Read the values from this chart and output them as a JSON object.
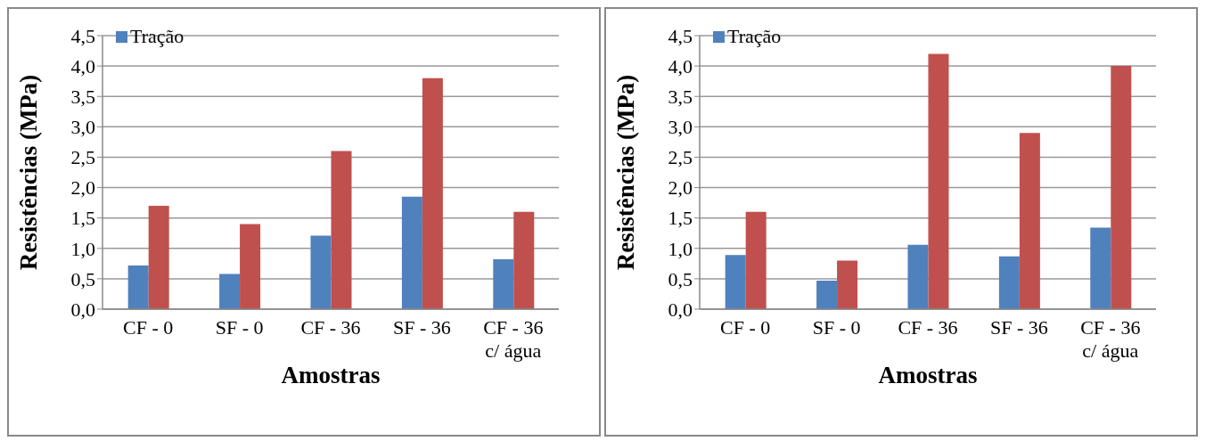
{
  "chart_data": [
    {
      "type": "bar",
      "categories": [
        "CF - 0",
        "SF - 0",
        "CF - 36",
        "SF - 36",
        "CF - 36 c/ água"
      ],
      "xlabel": "Amostras",
      "ylabel": "Resistências (MPa)",
      "series": [
        {
          "name": "Tração",
          "color": "#4f81bd",
          "values": [
            0.72,
            0.58,
            1.21,
            1.85,
            0.82
          ]
        },
        {
          "color": "#c0504d",
          "values": [
            1.7,
            1.4,
            2.6,
            3.8,
            1.6
          ]
        }
      ],
      "ylim": [
        0,
        4.5
      ],
      "yticks": [
        {
          "value": 0,
          "label": "0,0"
        },
        {
          "value": 0.5,
          "label": "0,5"
        },
        {
          "value": 1,
          "label": "1,0"
        },
        {
          "value": 1.5,
          "label": "1,5"
        },
        {
          "value": 2,
          "label": "2,0"
        },
        {
          "value": 2.5,
          "label": "2,5"
        },
        {
          "value": 3,
          "label": "3,0"
        },
        {
          "value": 3.5,
          "label": "3,5"
        },
        {
          "value": 4,
          "label": "4,0"
        },
        {
          "value": 4.5,
          "label": "4,5"
        }
      ],
      "grid": "y",
      "legend": "top left"
    },
    {
      "type": "bar",
      "categories": [
        "CF - 0",
        "SF - 0",
        "CF - 36",
        "SF - 36",
        "CF - 36 c/ água"
      ],
      "xlabel": "Amostras",
      "ylabel": "Resistências  (MPa)",
      "series": [
        {
          "name": "Tração",
          "color": "#4f81bd",
          "values": [
            0.89,
            0.47,
            1.06,
            0.87,
            1.34
          ]
        },
        {
          "color": "#c0504d",
          "values": [
            1.6,
            0.8,
            4.2,
            2.9,
            4.0
          ]
        }
      ],
      "ylim": [
        0,
        4.5
      ],
      "yticks": [
        {
          "value": 0,
          "label": "0,0"
        },
        {
          "value": 0.5,
          "label": "0,5"
        },
        {
          "value": 1,
          "label": "1,0"
        },
        {
          "value": 1.5,
          "label": "1,5"
        },
        {
          "value": 2,
          "label": "2,0"
        },
        {
          "value": 2.5,
          "label": "2,5"
        },
        {
          "value": 3,
          "label": "3,0"
        },
        {
          "value": 3.5,
          "label": "3,5"
        },
        {
          "value": 4,
          "label": "4,0"
        },
        {
          "value": 4.5,
          "label": "4,5"
        }
      ],
      "grid": "y",
      "legend": "top left"
    }
  ]
}
